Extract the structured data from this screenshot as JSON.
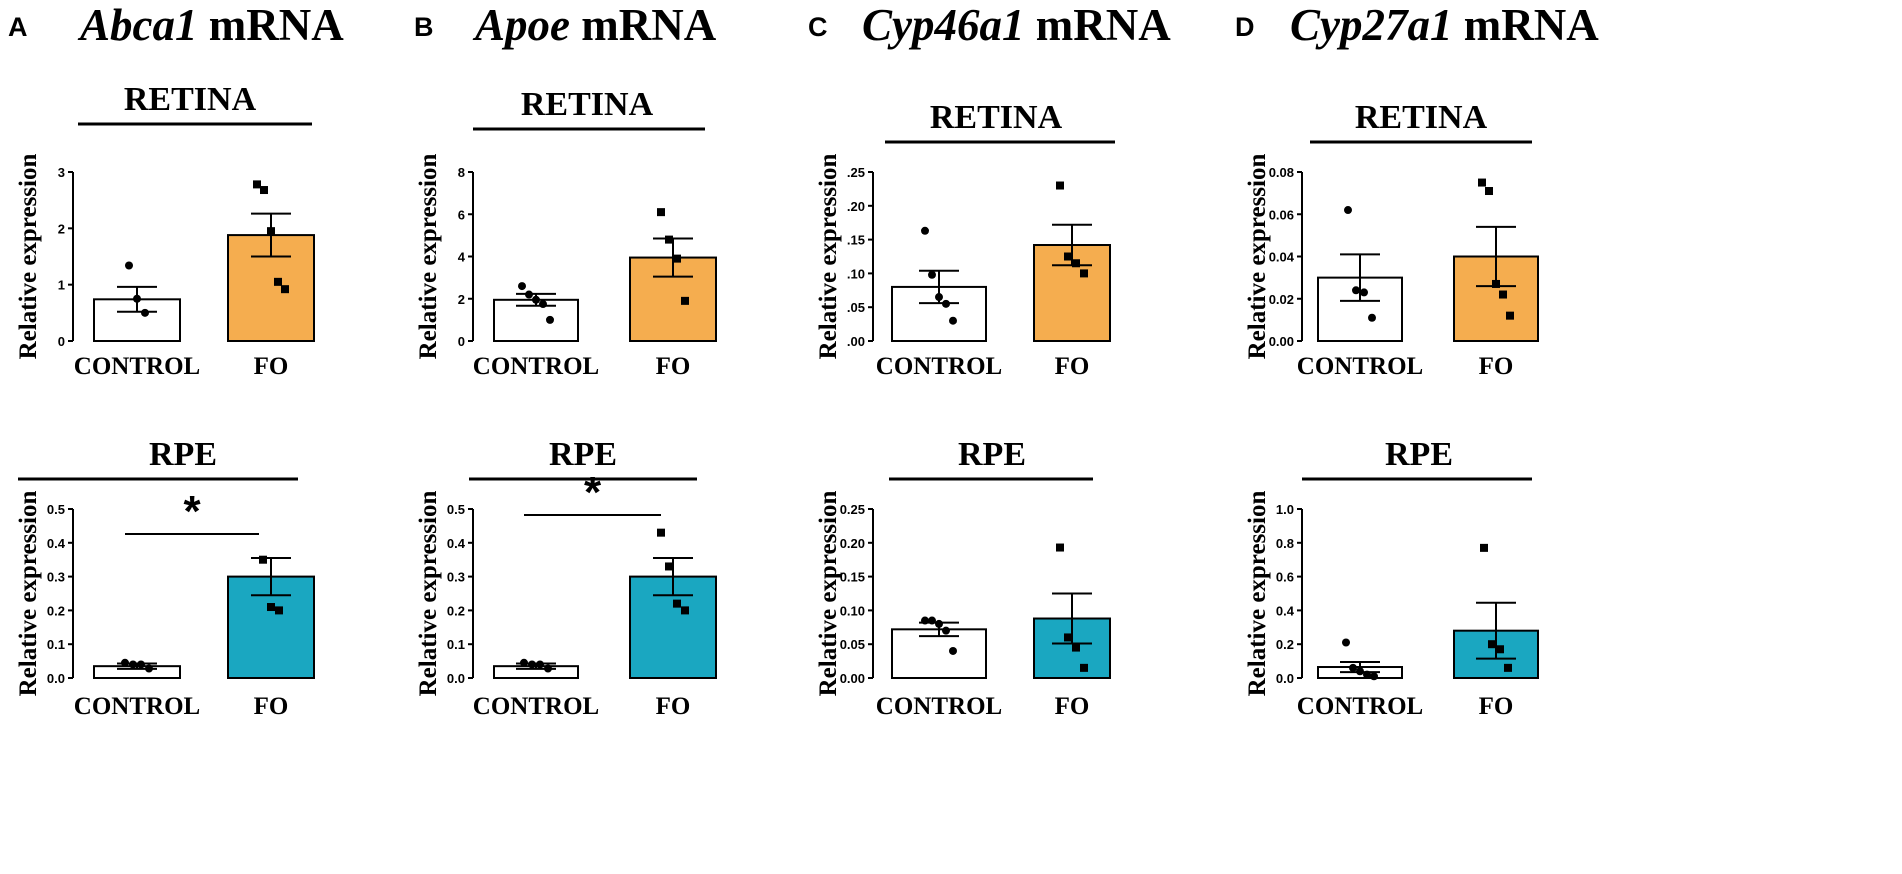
{
  "figure": {
    "colors": {
      "control": "#ffffff",
      "fo_retina": "#f5ad4f",
      "fo_rpe": "#1aa7c1",
      "ink": "#000000"
    },
    "categories": [
      "CONTROL",
      "FO"
    ]
  },
  "chart_data": [
    {
      "panel": "A",
      "gene": "Abca1",
      "suffix": " mRNA",
      "tissue": "RETINA",
      "type": "bar",
      "ylabel": "Relative expression",
      "ylim": [
        0,
        3
      ],
      "ticks": [
        "0",
        "1",
        "2",
        "3"
      ],
      "tick_values": [
        0,
        1,
        2,
        3
      ],
      "categories": [
        "CONTROL",
        "FO"
      ],
      "series": [
        {
          "name": "CONTROL",
          "value": 0.74,
          "sem": 0.22,
          "points": [
            1.34,
            0.75,
            0.5
          ]
        },
        {
          "name": "FO",
          "value": 1.88,
          "sem": 0.38,
          "points": [
            2.78,
            2.68,
            1.95,
            1.05,
            0.92
          ]
        }
      ],
      "significance": null
    },
    {
      "panel": "A",
      "gene": "Abca1",
      "suffix": " mRNA",
      "tissue": "RPE",
      "type": "bar",
      "ylabel": "Relative expression",
      "ylim": [
        0,
        0.5
      ],
      "ticks": [
        "0.0",
        "0.1",
        "0.2",
        "0.3",
        "0.4",
        "0.5"
      ],
      "tick_values": [
        0,
        0.1,
        0.2,
        0.3,
        0.4,
        0.5
      ],
      "categories": [
        "CONTROL",
        "FO"
      ],
      "series": [
        {
          "name": "CONTROL",
          "value": 0.035,
          "sem": 0.008,
          "points": [
            0.045,
            0.04,
            0.04,
            0.028
          ]
        },
        {
          "name": "FO",
          "value": 0.3,
          "sem": 0.055,
          "points": [
            0.35,
            0.21,
            0.2
          ]
        }
      ],
      "significance": "*"
    },
    {
      "panel": "B",
      "gene": "Apoe",
      "suffix": " mRNA",
      "tissue": "RETINA",
      "type": "bar",
      "ylabel": "Relative expression",
      "ylim": [
        0,
        8
      ],
      "ticks": [
        "0",
        "2",
        "4",
        "6",
        "8"
      ],
      "tick_values": [
        0,
        2,
        4,
        6,
        8
      ],
      "categories": [
        "CONTROL",
        "FO"
      ],
      "series": [
        {
          "name": "CONTROL",
          "value": 1.95,
          "sem": 0.28,
          "points": [
            2.6,
            2.2,
            1.95,
            1.75,
            1.0
          ]
        },
        {
          "name": "FO",
          "value": 3.95,
          "sem": 0.9,
          "points": [
            6.1,
            4.8,
            3.9,
            1.9
          ]
        }
      ],
      "significance": null
    },
    {
      "panel": "B",
      "gene": "Apoe",
      "suffix": " mRNA",
      "tissue": "RPE",
      "type": "bar",
      "ylabel": "Relative expression",
      "ylim": [
        0,
        0.5
      ],
      "ticks": [
        "0.0",
        "0.1",
        "0.2",
        "0.3",
        "0.4",
        "0.5"
      ],
      "tick_values": [
        0,
        0.1,
        0.2,
        0.3,
        0.4,
        0.5
      ],
      "categories": [
        "CONTROL",
        "FO"
      ],
      "series": [
        {
          "name": "CONTROL",
          "value": 0.035,
          "sem": 0.008,
          "points": [
            0.045,
            0.04,
            0.04,
            0.028
          ]
        },
        {
          "name": "FO",
          "value": 0.3,
          "sem": 0.055,
          "points": [
            0.43,
            0.33,
            0.22,
            0.2
          ]
        }
      ],
      "significance": "*"
    },
    {
      "panel": "C",
      "gene": "Cyp46a1",
      "suffix": " mRNA",
      "tissue": "RETINA",
      "type": "bar",
      "ylabel": "Relative expression",
      "ylim": [
        0,
        0.25
      ],
      "ticks": [
        ".00",
        ".05",
        ".10",
        ".15",
        ".20",
        ".25"
      ],
      "tick_values": [
        0,
        0.05,
        0.1,
        0.15,
        0.2,
        0.25
      ],
      "categories": [
        "CONTROL",
        "FO"
      ],
      "series": [
        {
          "name": "CONTROL",
          "value": 0.08,
          "sem": 0.024,
          "points": [
            0.163,
            0.098,
            0.065,
            0.055,
            0.03
          ]
        },
        {
          "name": "FO",
          "value": 0.142,
          "sem": 0.03,
          "points": [
            0.23,
            0.125,
            0.115,
            0.1
          ]
        }
      ],
      "significance": null
    },
    {
      "panel": "C",
      "gene": "Cyp46a1",
      "suffix": " mRNA",
      "tissue": "RPE",
      "type": "bar",
      "ylabel": "Relative expression",
      "ylim": [
        0,
        0.25
      ],
      "ticks": [
        "0.00",
        "0.05",
        "0.10",
        "0.15",
        "0.20",
        "0.25"
      ],
      "tick_values": [
        0,
        0.05,
        0.1,
        0.15,
        0.2,
        0.25
      ],
      "categories": [
        "CONTROL",
        "FO"
      ],
      "series": [
        {
          "name": "CONTROL",
          "value": 0.072,
          "sem": 0.01,
          "points": [
            0.085,
            0.085,
            0.08,
            0.07,
            0.04
          ]
        },
        {
          "name": "FO",
          "value": 0.088,
          "sem": 0.037,
          "points": [
            0.193,
            0.06,
            0.045,
            0.015
          ]
        }
      ],
      "significance": null
    },
    {
      "panel": "D",
      "gene": "Cyp27a1",
      "suffix": " mRNA",
      "tissue": "RETINA",
      "type": "bar",
      "ylabel": "Relative expression",
      "ylim": [
        0,
        0.08
      ],
      "ticks": [
        "0.00",
        "0.02",
        "0.04",
        "0.06",
        "0.08"
      ],
      "tick_values": [
        0,
        0.02,
        0.04,
        0.06,
        0.08
      ],
      "categories": [
        "CONTROL",
        "FO"
      ],
      "series": [
        {
          "name": "CONTROL",
          "value": 0.03,
          "sem": 0.011,
          "points": [
            0.062,
            0.024,
            0.023,
            0.011
          ]
        },
        {
          "name": "FO",
          "value": 0.04,
          "sem": 0.014,
          "points": [
            0.075,
            0.071,
            0.027,
            0.022,
            0.012
          ]
        }
      ],
      "significance": null
    },
    {
      "panel": "D",
      "gene": "Cyp27a1",
      "suffix": " mRNA",
      "tissue": "RPE",
      "type": "bar",
      "ylabel": "Relative expression",
      "ylim": [
        0,
        1.0
      ],
      "ticks": [
        "0.0",
        "0.2",
        "0.4",
        "0.6",
        "0.8",
        "1.0"
      ],
      "tick_values": [
        0,
        0.2,
        0.4,
        0.6,
        0.8,
        1.0
      ],
      "categories": [
        "CONTROL",
        "FO"
      ],
      "series": [
        {
          "name": "CONTROL",
          "value": 0.065,
          "sem": 0.03,
          "points": [
            0.21,
            0.06,
            0.04,
            0.02,
            0.01
          ]
        },
        {
          "name": "FO",
          "value": 0.28,
          "sem": 0.165,
          "points": [
            0.77,
            0.2,
            0.17,
            0.06
          ]
        }
      ],
      "significance": null
    }
  ]
}
